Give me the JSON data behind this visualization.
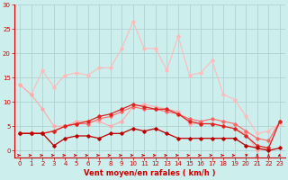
{
  "bg_color": "#cceeed",
  "grid_color": "#aacccc",
  "xlabel": "Vent moyen/en rafales ( km/h )",
  "xlabel_color": "#cc0000",
  "xlabel_fontsize": 6.0,
  "tick_color": "#cc0000",
  "tick_fontsize": 5.0,
  "ylim": [
    0,
    30
  ],
  "xlim": [
    -0.5,
    23.5
  ],
  "yticks": [
    0,
    5,
    10,
    15,
    20,
    25,
    30
  ],
  "xticks": [
    0,
    1,
    2,
    3,
    4,
    5,
    6,
    7,
    8,
    9,
    10,
    11,
    12,
    13,
    14,
    15,
    16,
    17,
    18,
    19,
    20,
    21,
    22,
    23
  ],
  "series": [
    {
      "y": [
        13.5,
        11.5,
        8.5,
        5.0,
        5.0,
        6.0,
        6.0,
        6.0,
        5.0,
        6.0,
        9.0,
        9.5,
        9.0,
        8.5,
        8.0,
        5.5,
        5.5,
        5.5,
        5.0,
        4.5,
        3.5,
        0.0,
        0.5,
        6.0
      ],
      "color": "#ffaaaa",
      "marker": "D",
      "markersize": 1.8,
      "linewidth": 0.8,
      "zorder": 3
    },
    {
      "y": [
        13.5,
        11.5,
        16.5,
        13.0,
        15.5,
        16.0,
        15.5,
        17.0,
        17.0,
        21.0,
        26.5,
        21.0,
        21.0,
        16.5,
        23.5,
        15.5,
        16.0,
        18.5,
        11.5,
        10.5,
        7.0,
        3.5,
        4.0,
        5.5
      ],
      "color": "#ffbbbb",
      "marker": "D",
      "markersize": 1.8,
      "linewidth": 0.8,
      "zorder": 2
    },
    {
      "y": [
        3.5,
        3.5,
        3.5,
        1.0,
        2.5,
        3.0,
        3.0,
        2.5,
        3.5,
        3.5,
        4.5,
        4.0,
        4.5,
        3.5,
        2.5,
        2.5,
        2.5,
        2.5,
        2.5,
        2.5,
        1.0,
        0.5,
        0.0,
        0.5
      ],
      "color": "#bb0000",
      "marker": "D",
      "markersize": 1.8,
      "linewidth": 0.9,
      "zorder": 5
    },
    {
      "y": [
        3.5,
        3.5,
        3.5,
        4.0,
        5.0,
        5.5,
        6.0,
        7.0,
        7.5,
        8.5,
        9.5,
        9.0,
        8.5,
        8.5,
        7.5,
        6.0,
        5.5,
        5.5,
        5.0,
        4.5,
        3.0,
        1.0,
        0.5,
        6.0
      ],
      "color": "#dd2222",
      "marker": "D",
      "markersize": 1.8,
      "linewidth": 0.9,
      "zorder": 4
    },
    {
      "y": [
        3.5,
        3.5,
        3.5,
        4.0,
        5.0,
        5.5,
        5.5,
        6.5,
        7.0,
        8.0,
        9.0,
        8.5,
        8.5,
        8.0,
        7.5,
        6.5,
        6.0,
        6.5,
        6.0,
        5.5,
        4.0,
        2.5,
        2.0,
        6.0
      ],
      "color": "#ff6666",
      "marker": "D",
      "markersize": 1.8,
      "linewidth": 0.8,
      "zorder": 3
    }
  ],
  "arrow_color": "#cc0000",
  "arrow_angles": [
    0,
    0,
    0,
    0,
    0,
    0,
    0,
    0,
    0,
    0,
    0,
    0,
    0,
    0,
    0,
    0,
    0,
    0,
    0,
    0,
    45,
    90,
    90,
    225
  ]
}
